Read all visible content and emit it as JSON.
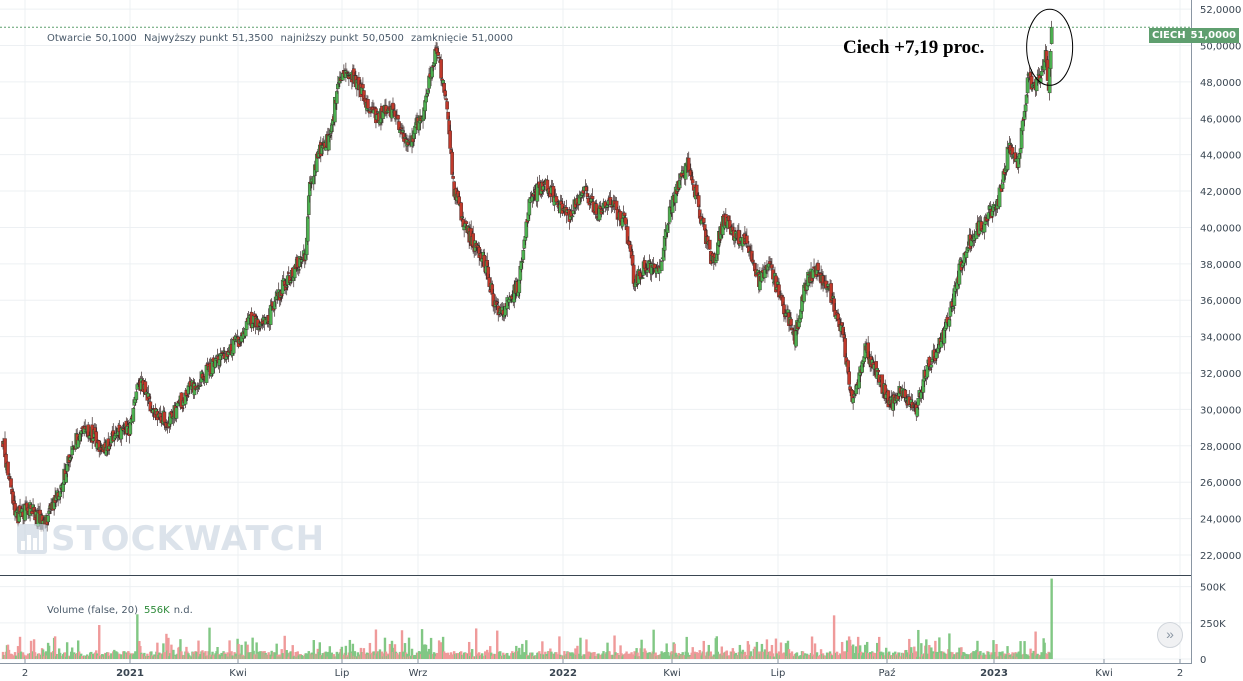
{
  "ohlc": {
    "open_label": "Otwarcie",
    "open": "50,1000",
    "high_label": "Najwyższy punkt",
    "high": "51,3500",
    "low_label": "najniższy punkt",
    "low": "50,0500",
    "close_label": "zamknięcie",
    "close": "51,0000"
  },
  "annotation": "Ciech +7,19 proc.",
  "price_tag": {
    "symbol": "CIECH",
    "value": "51,0000"
  },
  "watermark": "STOCKWATCH",
  "volume": {
    "label": "Volume (false, 20)",
    "value": "556K",
    "nd": "n.d."
  },
  "colors": {
    "up": "#4caf50",
    "down": "#c0392b",
    "vol_up": "#81c784",
    "vol_down": "#ef9a9a",
    "accent": "#5f9f6f"
  },
  "chart_data": {
    "type": "candlestick",
    "x_tick_labels": [
      "2",
      "2021",
      "Kwi",
      "Lip",
      "Wrz",
      "2022",
      "Kwi",
      "Lip",
      "Paź",
      "2023",
      "Kwi",
      "2"
    ],
    "y_tick_labels": [
      "22,0000",
      "24,0000",
      "26,0000",
      "28,0000",
      "30,0000",
      "32,0000",
      "34,0000",
      "36,0000",
      "38,0000",
      "40,0000",
      "42,0000",
      "44,0000",
      "46,0000",
      "48,0000",
      "50,0000",
      "52,0000"
    ],
    "ylim": [
      20.9,
      52.5
    ],
    "volume_tick_labels": [
      "0",
      "250K",
      "500K"
    ],
    "volume_ylim": [
      0,
      560000
    ],
    "last_price": 51.0,
    "last_volume": 556000,
    "price_path": [
      [
        0,
        28.2
      ],
      [
        12,
        24.0
      ],
      [
        28,
        24.6
      ],
      [
        40,
        23.7
      ],
      [
        56,
        25.3
      ],
      [
        70,
        28.1
      ],
      [
        85,
        28.9
      ],
      [
        100,
        27.8
      ],
      [
        115,
        28.6
      ],
      [
        126,
        29.0
      ],
      [
        136,
        31.6
      ],
      [
        148,
        30.1
      ],
      [
        165,
        29.3
      ],
      [
        185,
        31.0
      ],
      [
        205,
        32.2
      ],
      [
        225,
        33.0
      ],
      [
        245,
        34.8
      ],
      [
        262,
        34.6
      ],
      [
        272,
        36.0
      ],
      [
        290,
        37.7
      ],
      [
        302,
        38.6
      ],
      [
        305,
        41.9
      ],
      [
        315,
        44.2
      ],
      [
        327,
        45.0
      ],
      [
        333,
        47.6
      ],
      [
        345,
        48.6
      ],
      [
        360,
        47.2
      ],
      [
        372,
        46.1
      ],
      [
        388,
        46.5
      ],
      [
        405,
        44.6
      ],
      [
        420,
        46.6
      ],
      [
        432,
        49.9
      ],
      [
        443,
        46.5
      ],
      [
        450,
        42.0
      ],
      [
        462,
        39.8
      ],
      [
        480,
        38.2
      ],
      [
        492,
        35.4
      ],
      [
        505,
        35.8
      ],
      [
        515,
        37.0
      ],
      [
        525,
        41.4
      ],
      [
        540,
        42.5
      ],
      [
        555,
        41.3
      ],
      [
        565,
        40.5
      ],
      [
        578,
        42.2
      ],
      [
        592,
        40.8
      ],
      [
        605,
        41.5
      ],
      [
        620,
        40.3
      ],
      [
        630,
        36.9
      ],
      [
        640,
        37.8
      ],
      [
        655,
        37.6
      ],
      [
        663,
        40.5
      ],
      [
        672,
        42.0
      ],
      [
        683,
        43.6
      ],
      [
        697,
        40.4
      ],
      [
        708,
        38.0
      ],
      [
        720,
        40.7
      ],
      [
        730,
        39.4
      ],
      [
        742,
        39.4
      ],
      [
        754,
        37.0
      ],
      [
        765,
        37.8
      ],
      [
        780,
        35.5
      ],
      [
        790,
        34.0
      ],
      [
        800,
        36.9
      ],
      [
        812,
        37.7
      ],
      [
        825,
        36.4
      ],
      [
        837,
        34.3
      ],
      [
        848,
        30.4
      ],
      [
        860,
        33.4
      ],
      [
        872,
        32.1
      ],
      [
        884,
        30.2
      ],
      [
        895,
        31.0
      ],
      [
        910,
        29.8
      ],
      [
        920,
        32.0
      ],
      [
        932,
        33.2
      ],
      [
        944,
        35.0
      ],
      [
        955,
        37.9
      ],
      [
        968,
        39.7
      ],
      [
        980,
        40.4
      ],
      [
        993,
        41.5
      ],
      [
        1003,
        44.3
      ],
      [
        1013,
        43.6
      ],
      [
        1022,
        48.2
      ],
      [
        1030,
        47.7
      ],
      [
        1038,
        48.7
      ],
      [
        1040,
        49.4
      ],
      [
        1043,
        47.6
      ],
      [
        1046,
        51.0
      ]
    ]
  }
}
